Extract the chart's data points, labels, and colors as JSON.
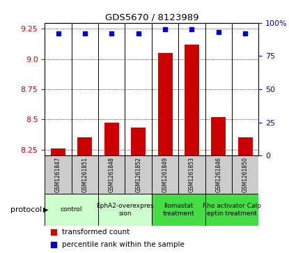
{
  "title": "GDS5670 / 8123989",
  "samples": [
    "GSM1261847",
    "GSM1261851",
    "GSM1261848",
    "GSM1261852",
    "GSM1261849",
    "GSM1261853",
    "GSM1261846",
    "GSM1261850"
  ],
  "transformed_counts": [
    8.26,
    8.35,
    8.47,
    8.43,
    9.05,
    9.12,
    8.52,
    8.35
  ],
  "percentile_ranks": [
    92,
    92,
    92,
    92,
    95,
    95,
    93,
    92
  ],
  "ylim_left": [
    8.2,
    9.3
  ],
  "ylim_right": [
    0,
    100
  ],
  "yticks_left": [
    8.25,
    8.5,
    8.75,
    9.0,
    9.25
  ],
  "yticks_right": [
    0,
    25,
    50,
    75,
    100
  ],
  "bar_color": "#cc0000",
  "dot_color": "#0000cc",
  "bg_color": "#ffffff",
  "grid_color": "#000000",
  "protocols": [
    {
      "label": "control",
      "start": 0,
      "end": 2,
      "color": "#ccffcc"
    },
    {
      "label": "EphA2-overexpres\nsion",
      "start": 2,
      "end": 4,
      "color": "#ccffcc"
    },
    {
      "label": "Ilomastat\ntreatment",
      "start": 4,
      "end": 6,
      "color": "#44dd44"
    },
    {
      "label": "Rho activator Calp\neptin treatment",
      "start": 6,
      "end": 8,
      "color": "#44dd44"
    }
  ],
  "legend_bar_label": "transformed count",
  "legend_dot_label": "percentile rank within the sample",
  "protocol_label": "protocol",
  "tick_label_color_left": "#cc0000",
  "tick_label_color_right": "#0000cc",
  "sample_box_color": "#cccccc"
}
